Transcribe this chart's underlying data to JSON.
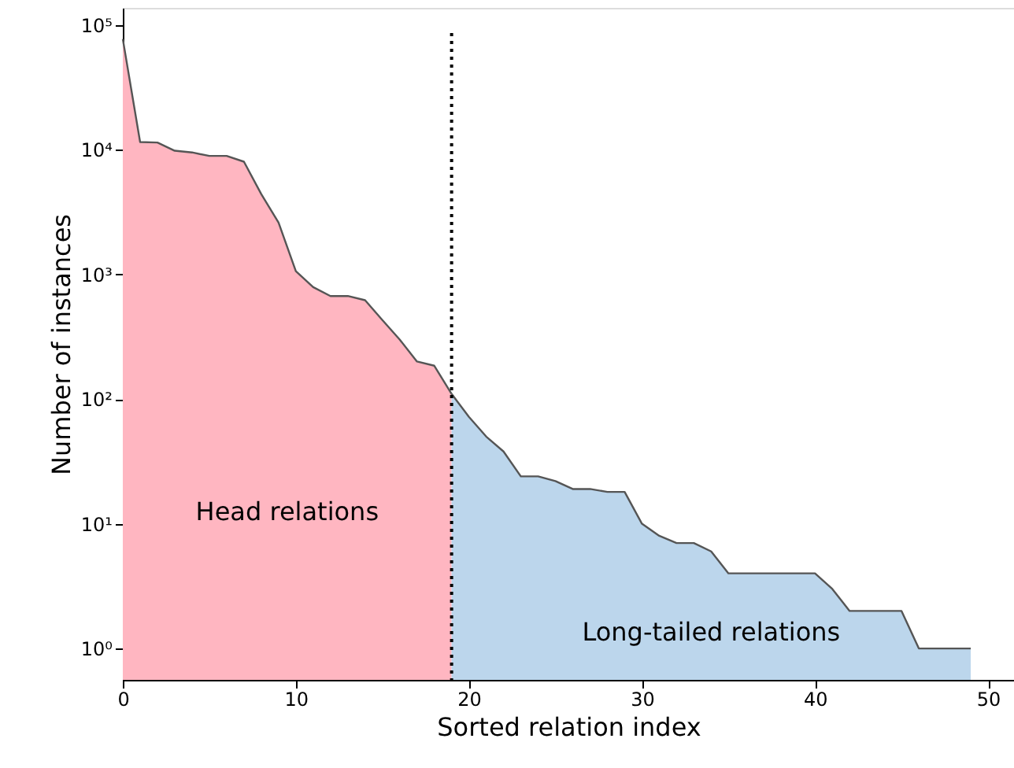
{
  "chart_data": {
    "type": "area",
    "xlabel": "Sorted relation index",
    "ylabel": "Number of instances",
    "log": "y",
    "grid": false,
    "xlim": [
      0,
      51.5
    ],
    "xticks": [
      0,
      10,
      20,
      30,
      40,
      50
    ],
    "ylim": [
      0.56,
      137000
    ],
    "yticks": [
      {
        "value": 1,
        "label": "10⁰"
      },
      {
        "value": 10,
        "label": "10¹"
      },
      {
        "value": 100,
        "label": "10²"
      },
      {
        "value": 1000,
        "label": "10³"
      },
      {
        "value": 10000,
        "label": "10⁴"
      },
      {
        "value": 100000,
        "label": "10⁵"
      }
    ],
    "series": [
      {
        "name": "Head relations",
        "color": "#ffb6c1",
        "x": [
          0,
          1,
          2,
          3,
          4,
          5,
          6,
          7,
          8,
          9,
          10,
          11,
          12,
          13,
          14,
          15,
          16,
          17,
          18,
          19
        ],
        "values": [
          77000,
          11500,
          11400,
          9800,
          9500,
          8900,
          8900,
          8000,
          4400,
          2600,
          1060,
          790,
          670,
          670,
          620,
          430,
          300,
          200,
          185,
          110
        ]
      },
      {
        "name": "Long-tailed relations",
        "color": "#bcd6ec",
        "x": [
          19,
          20,
          21,
          22,
          23,
          24,
          25,
          26,
          27,
          28,
          29,
          30,
          31,
          32,
          33,
          34,
          35,
          36,
          37,
          38,
          39,
          40,
          41,
          42,
          43,
          44,
          45,
          46,
          47,
          48,
          49
        ],
        "values": [
          110,
          72,
          50,
          38,
          24,
          24,
          22,
          19,
          19,
          18,
          18,
          10,
          8,
          7,
          7,
          6,
          4,
          4,
          4,
          4,
          4,
          4,
          3,
          2,
          2,
          2,
          2,
          1,
          1,
          1,
          1
        ]
      }
    ],
    "ref_lines": [
      {
        "axis": "x",
        "value": 19,
        "line_style": "dotted",
        "color": "#000000"
      }
    ]
  }
}
